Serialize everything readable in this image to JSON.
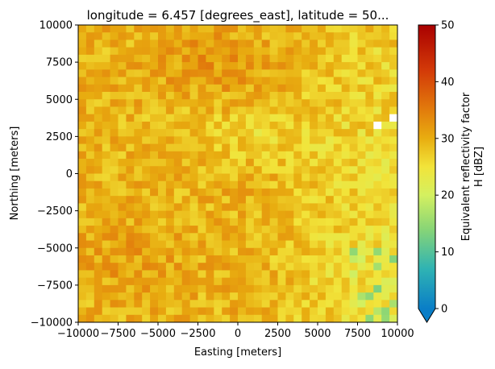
{
  "chart_data": {
    "type": "heatmap",
    "title": "longitude = 6.457 [degrees_east], latitude = 50...",
    "xlabel": "Easting [meters]",
    "ylabel": "Northing [meters]",
    "xlim": [
      -10000,
      10000
    ],
    "ylim": [
      -10000,
      10000
    ],
    "x_ticks": [
      -10000,
      -7500,
      -5000,
      -2500,
      0,
      2500,
      5000,
      7500,
      10000
    ],
    "y_ticks": [
      -10000,
      -7500,
      -5000,
      -2500,
      0,
      2500,
      5000,
      7500,
      10000
    ],
    "x_tick_labels": [
      "−10000",
      "−7500",
      "−5000",
      "−2500",
      "0",
      "2500",
      "5000",
      "7500",
      "10000"
    ],
    "y_tick_labels": [
      "−10000",
      "−7500",
      "−5000",
      "−2500",
      "0",
      "2500",
      "5000",
      "7500",
      "10000"
    ],
    "colorbar": {
      "label_line1": "Equivalent reflectivity factor",
      "label_line2": "H [dBZ]",
      "range": [
        0,
        50
      ],
      "ticks": [
        0,
        10,
        20,
        30,
        40,
        50
      ],
      "extend": "min",
      "colormap_stops": [
        {
          "v": 0,
          "color": "#0a7ec7"
        },
        {
          "v": 7,
          "color": "#2fb3b3"
        },
        {
          "v": 14,
          "color": "#88d576"
        },
        {
          "v": 20,
          "color": "#d4f060"
        },
        {
          "v": 25,
          "color": "#f2e43a"
        },
        {
          "v": 30,
          "color": "#e8ad10"
        },
        {
          "v": 35,
          "color": "#e27c0c"
        },
        {
          "v": 42,
          "color": "#d33a08"
        },
        {
          "v": 50,
          "color": "#a90000"
        }
      ]
    },
    "grid": false,
    "n_cols": 40,
    "n_rows": 40
  }
}
